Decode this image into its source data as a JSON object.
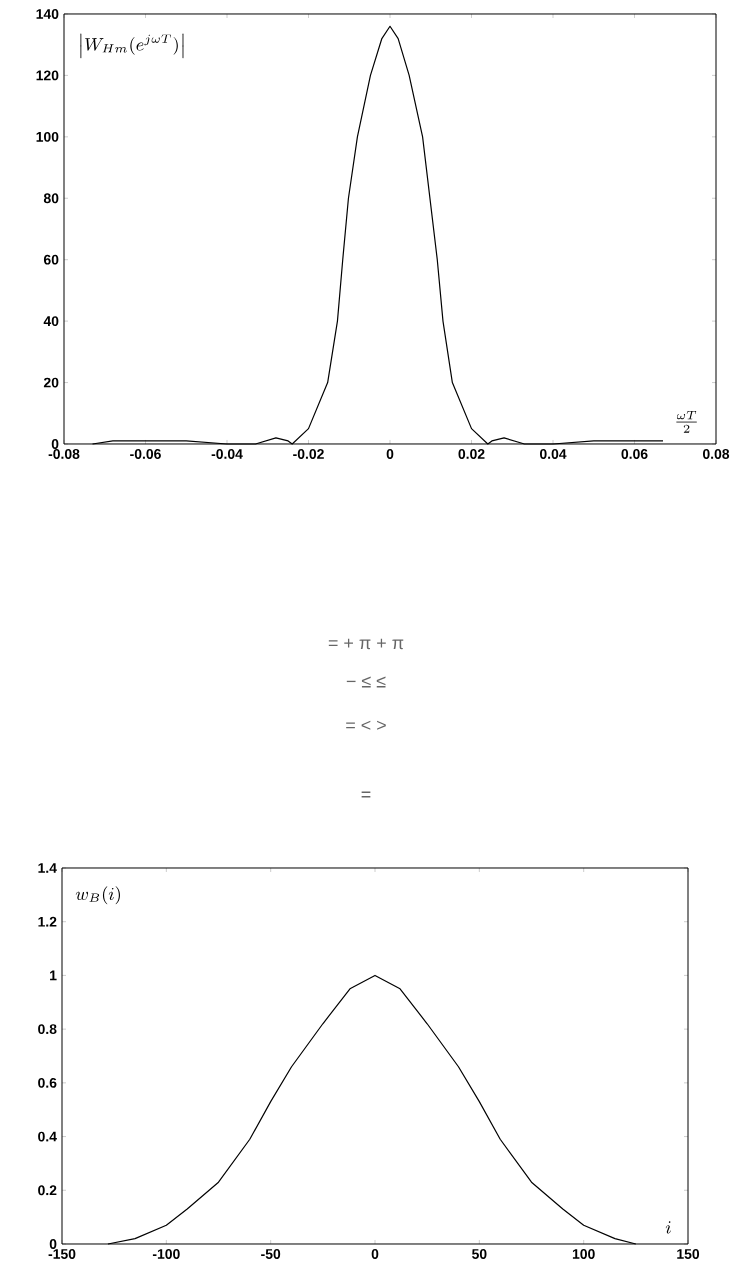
{
  "chart_data": [
    {
      "type": "line",
      "xlabel": "\\frac{\\omega T}{2}",
      "ylabel": "\\left|W_{Hm}(e^{j\\omega T})\\right|",
      "x": [
        -0.073,
        -0.068,
        -0.06,
        -0.05,
        -0.04,
        -0.033,
        -0.028,
        -0.025,
        -0.024,
        -0.02,
        -0.0153,
        -0.0129,
        -0.0116,
        -0.0102,
        -0.008,
        -0.0048,
        -0.002,
        0,
        0.002,
        0.0047,
        0.008,
        0.0098,
        0.0116,
        0.013,
        0.0153,
        0.02,
        0.024,
        0.025,
        0.028,
        0.033,
        0.04,
        0.05,
        0.06,
        0.067
      ],
      "series": [
        {
          "color": "#000000",
          "values": [
            0,
            1,
            1,
            1,
            0,
            0,
            2,
            1,
            0,
            5,
            20,
            40,
            60,
            80,
            100,
            120,
            132,
            136,
            132,
            120,
            100,
            80,
            60,
            40,
            20,
            5,
            0,
            1,
            2,
            0,
            0,
            1,
            1,
            1
          ]
        }
      ],
      "xlim": [
        -0.08,
        0.08
      ],
      "ylim": [
        0,
        140
      ],
      "xticks": [
        -0.08,
        -0.06,
        -0.04,
        -0.02,
        0,
        0.02,
        0.04,
        0.06,
        0.08
      ],
      "yticks": [
        0,
        20,
        40,
        60,
        80,
        100,
        120,
        140
      ],
      "annotations": [
        "= + π + π",
        "− ≤ ≤",
        "= < >",
        "="
      ]
    },
    {
      "type": "line",
      "xlabel": "i",
      "ylabel": "w_B(i)",
      "x": [
        -128,
        -115,
        -100,
        -90,
        -75,
        -60,
        -50,
        -40,
        -25,
        -12,
        0,
        12,
        25,
        40,
        50,
        60,
        75,
        90,
        100,
        115,
        125
      ],
      "series": [
        {
          "color": "#000000",
          "values": [
            0,
            0.02,
            0.07,
            0.13,
            0.23,
            0.39,
            0.53,
            0.66,
            0.82,
            0.95,
            1,
            0.95,
            0.82,
            0.66,
            0.53,
            0.39,
            0.23,
            0.13,
            0.07,
            0.02,
            0
          ]
        }
      ],
      "xlim": [
        -150,
        150
      ],
      "ylim": [
        0,
        1.4
      ],
      "xticks": [
        -150,
        -100,
        -50,
        0,
        50,
        100,
        150
      ],
      "yticks": [
        0,
        0.2,
        0.4,
        0.6,
        0.8,
        1,
        1.2,
        1.4
      ]
    }
  ]
}
